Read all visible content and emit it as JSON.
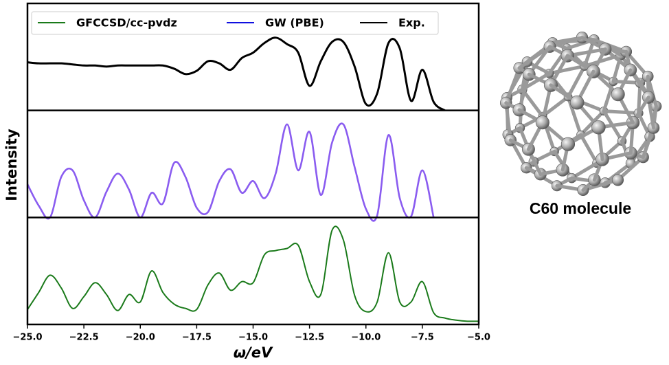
{
  "chart_data": {
    "type": "line",
    "xlabel": "ω/eV",
    "ylabel": "Intensity",
    "xlim": [
      -25,
      -5
    ],
    "xticks": [
      {
        "value": -25,
        "label": "−25.0"
      },
      {
        "value": -22.5,
        "label": "−22.5"
      },
      {
        "value": -20,
        "label": "−20.0"
      },
      {
        "value": -17.5,
        "label": "−17.5"
      },
      {
        "value": -15,
        "label": "−15.0"
      },
      {
        "value": -12.5,
        "label": "−12.5"
      },
      {
        "value": -10,
        "label": "−10.0"
      },
      {
        "value": -7.5,
        "label": "−7.5"
      },
      {
        "value": -5,
        "label": "−5.0"
      }
    ],
    "legend": "upper left",
    "x": [
      -25,
      -24.5,
      -24,
      -23.5,
      -23,
      -22.5,
      -22,
      -21.5,
      -21,
      -20.5,
      -20,
      -19.5,
      -19,
      -18.5,
      -18,
      -17.5,
      -17,
      -16.5,
      -16,
      -15.5,
      -15,
      -14.5,
      -14,
      -13.5,
      -13,
      -12.5,
      -12,
      -11.5,
      -11,
      -10.5,
      -10,
      -9.5,
      -9,
      -8.5,
      -8,
      -7.5,
      -7,
      -6.5,
      -6,
      -5.5,
      -5
    ],
    "series": [
      {
        "name": "GFCCSD/cc-pvdz",
        "color": "#1a7a1a",
        "ylim": [
          0,
          1
        ],
        "values": [
          0.14,
          0.3,
          0.46,
          0.34,
          0.15,
          0.26,
          0.39,
          0.28,
          0.13,
          0.28,
          0.21,
          0.5,
          0.3,
          0.19,
          0.15,
          0.14,
          0.37,
          0.48,
          0.32,
          0.4,
          0.39,
          0.65,
          0.69,
          0.71,
          0.74,
          0.4,
          0.28,
          0.88,
          0.79,
          0.27,
          0.12,
          0.21,
          0.67,
          0.21,
          0.21,
          0.4,
          0.11,
          0.06,
          0.04,
          0.03,
          0.03
        ]
      },
      {
        "name": "GW (PBE)",
        "color": "#8a5cf0",
        "legend_color": "#1010e0",
        "ylim": [
          0,
          1
        ],
        "values": [
          0.31,
          0.11,
          0,
          0.38,
          0.44,
          0.16,
          0,
          0.24,
          0.41,
          0.26,
          0,
          0.23,
          0.13,
          0.51,
          0.38,
          0.09,
          0.05,
          0.34,
          0.45,
          0.23,
          0.34,
          0.18,
          0.41,
          0.87,
          0.44,
          0.8,
          0.21,
          0.7,
          0.87,
          0.47,
          0.08,
          0.02,
          0.77,
          0.18,
          0.01,
          0.44,
          0,
          null,
          null,
          null,
          null
        ]
      },
      {
        "name": "Exp.",
        "color": "#000000",
        "ylim": [
          0,
          1
        ],
        "values": [
          0.45,
          0.44,
          0.44,
          0.44,
          0.43,
          0.42,
          0.42,
          0.41,
          0.42,
          0.42,
          0.42,
          0.42,
          0.42,
          0.39,
          0.34,
          0.37,
          0.46,
          0.44,
          0.38,
          0.49,
          0.54,
          0.63,
          0.68,
          0.62,
          0.54,
          0.23,
          0.46,
          0.64,
          0.64,
          0.41,
          0.06,
          0.16,
          0.63,
          0.58,
          0.09,
          0.38,
          0.08,
          0,
          null,
          null,
          null
        ]
      }
    ]
  },
  "image": {
    "caption": "C60 molecule"
  }
}
